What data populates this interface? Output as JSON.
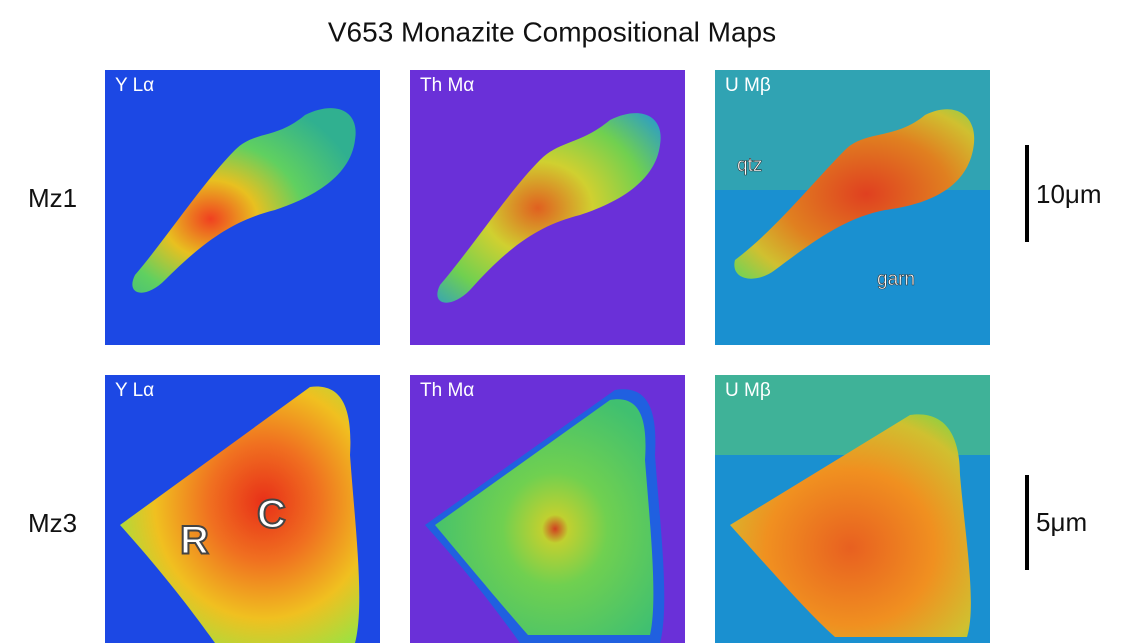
{
  "title": "V653 Monazite Compositional Maps",
  "rows": [
    {
      "label": "Mz1",
      "panels": [
        {
          "label": "Y Lα"
        },
        {
          "label": "Th Mα"
        },
        {
          "label": "U Mβ",
          "annotations": [
            "qtz",
            "garn"
          ]
        }
      ],
      "scale_bar": "10μm"
    },
    {
      "label": "Mz3",
      "panels": [
        {
          "label": "Y Lα",
          "annotations": [
            "R",
            "C"
          ]
        },
        {
          "label": "Th Mα"
        },
        {
          "label": "U Mβ"
        }
      ],
      "scale_bar": "5μm"
    }
  ]
}
